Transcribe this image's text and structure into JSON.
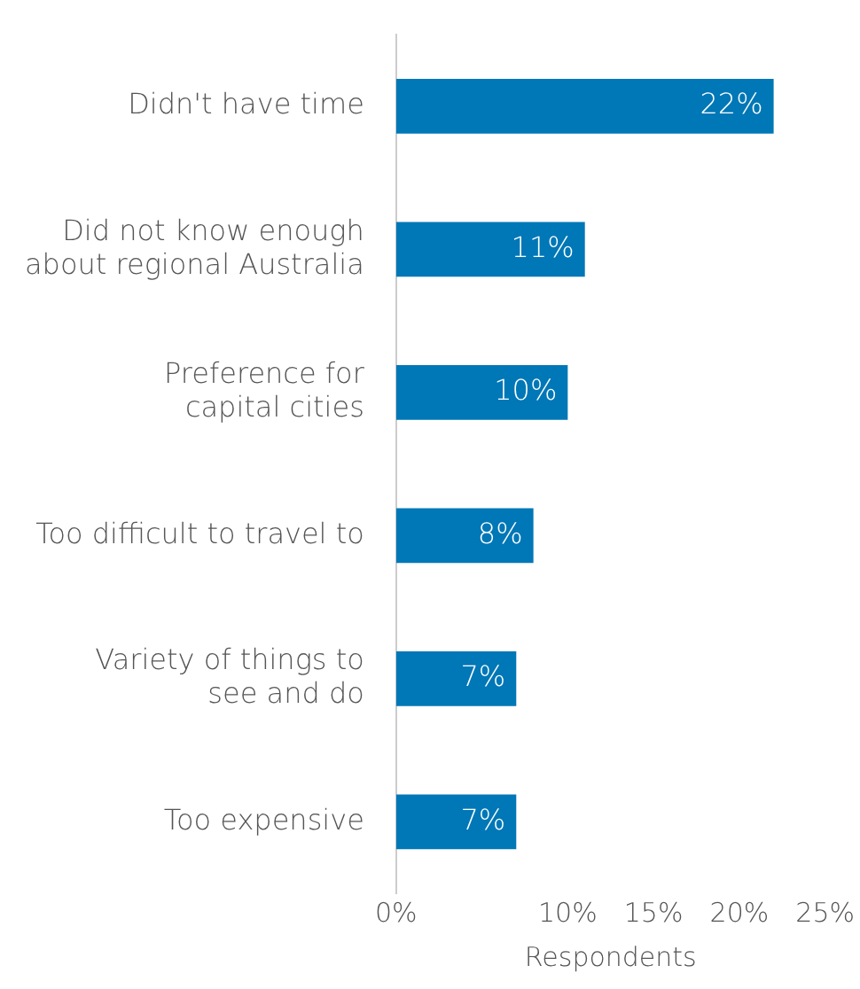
{
  "chart_data": {
    "type": "bar",
    "orientation": "horizontal",
    "xlabel": "Respondents",
    "categories": [
      "Didn't have time",
      "Did not know enough\nabout regional Australia",
      "Preference for\ncapital cities",
      "Too difficult to travel to",
      "Variety of things to\nsee and do",
      "Too expensive"
    ],
    "values": [
      22,
      11,
      10,
      8,
      7,
      7
    ],
    "value_labels": [
      "22%",
      "11%",
      "10%",
      "8%",
      "7%",
      "7%"
    ],
    "color": "#0077b6",
    "xlim": [
      0,
      25
    ],
    "xticks": [
      {
        "value": 0,
        "label": "0%"
      },
      {
        "value": 10,
        "label": "10%"
      },
      {
        "value": 15,
        "label": "15%"
      },
      {
        "value": 20,
        "label": "20%"
      },
      {
        "value": 25,
        "label": "25%"
      }
    ],
    "grid": false,
    "legend": false
  }
}
